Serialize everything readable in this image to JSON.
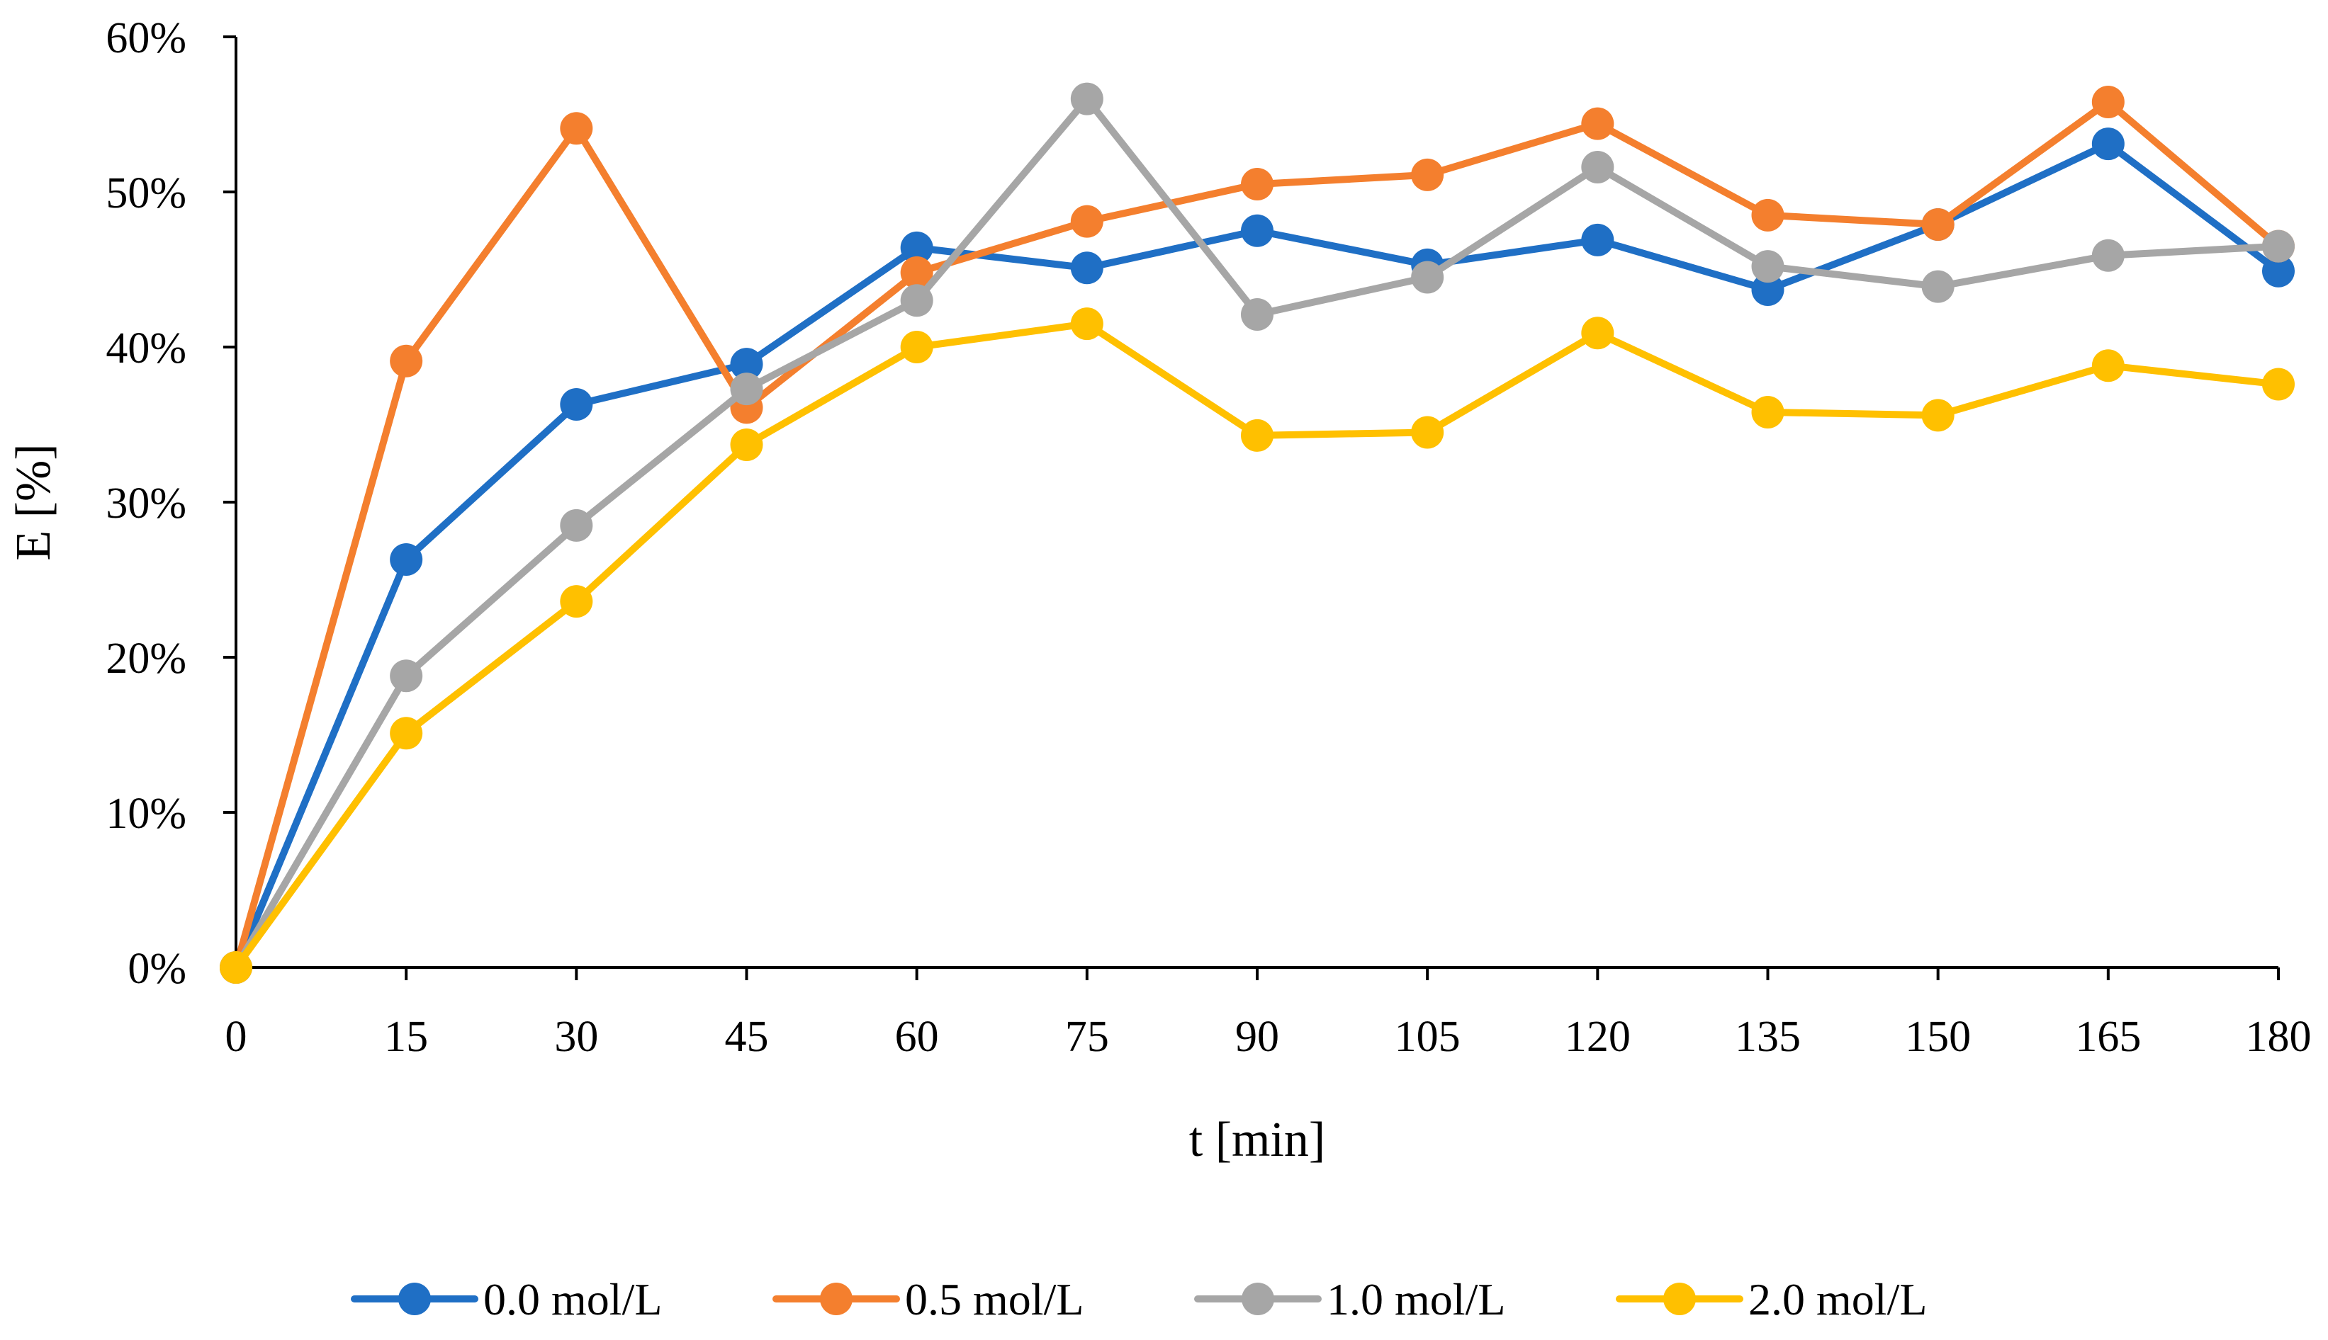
{
  "chart_data": {
    "type": "line",
    "title": "",
    "xlabel": "t [min]",
    "ylabel": "E [%]",
    "x": [
      0,
      15,
      30,
      45,
      60,
      75,
      90,
      105,
      120,
      135,
      150,
      165,
      180
    ],
    "x_tick_labels": [
      "0",
      "15",
      "30",
      "45",
      "60",
      "75",
      "90",
      "105",
      "120",
      "135",
      "150",
      "165",
      "180"
    ],
    "xlim": [
      0,
      180
    ],
    "ylim": [
      0,
      60
    ],
    "y_ticks": [
      0,
      10,
      20,
      30,
      40,
      50,
      60
    ],
    "y_tick_labels": [
      "0%",
      "10%",
      "20%",
      "30%",
      "40%",
      "50%",
      "60%"
    ],
    "grid": false,
    "legend_position": "bottom",
    "series": [
      {
        "name": "0.0 mol/L",
        "color": "#1F6FC5",
        "values": [
          0,
          26.3,
          36.3,
          38.9,
          46.4,
          45.1,
          47.5,
          45.3,
          46.9,
          43.7,
          47.9,
          53.1,
          44.9
        ]
      },
      {
        "name": "0.5 mol/L",
        "color": "#F47F2E",
        "values": [
          0,
          39.1,
          54.1,
          36.1,
          44.8,
          48.1,
          50.5,
          51.1,
          54.4,
          48.5,
          47.9,
          55.8,
          46.5
        ]
      },
      {
        "name": "1.0 mol/L",
        "color": "#A6A6A6",
        "values": [
          0,
          18.8,
          28.5,
          37.3,
          43.0,
          56.0,
          42.1,
          44.5,
          51.6,
          45.2,
          43.9,
          45.9,
          46.5
        ]
      },
      {
        "name": "2.0 mol/L",
        "color": "#FFC000",
        "values": [
          0,
          15.1,
          23.6,
          33.7,
          40.0,
          41.5,
          34.3,
          34.5,
          40.9,
          35.8,
          35.6,
          38.8,
          37.6
        ]
      }
    ]
  }
}
